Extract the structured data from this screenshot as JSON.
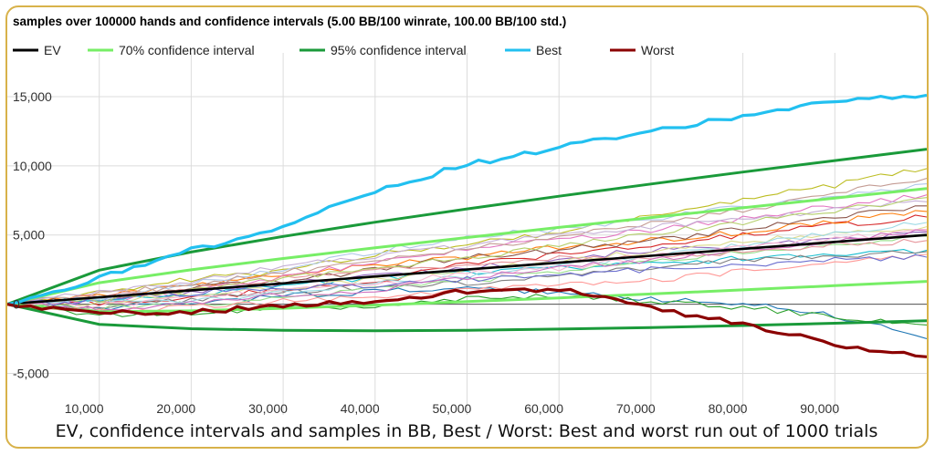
{
  "chart_data": {
    "type": "line",
    "title": "samples over 100000 hands and confidence intervals (5.00 BB/100 winrate, 100.00 BB/100 std.)",
    "caption": "EV, confidence intervals and samples in BB, Best / Worst: Best and worst run out of 1000 trials",
    "xlim": [
      0,
      100000
    ],
    "ylim": [
      -8000,
      17500
    ],
    "x_ticks": [
      10000,
      20000,
      30000,
      40000,
      50000,
      60000,
      70000,
      80000,
      90000
    ],
    "x_tick_labels": [
      "10,000",
      "20,000",
      "30,000",
      "40,000",
      "50,000",
      "60,000",
      "70,000",
      "80,000",
      "90,000"
    ],
    "y_ticks": [
      15000,
      10000,
      5000,
      0,
      -5000
    ],
    "y_tick_labels": [
      "15,000",
      "10,000",
      "5,000",
      "0",
      "-5,000"
    ],
    "grid": true,
    "legend_position": "top",
    "x": [
      0,
      10000,
      20000,
      30000,
      40000,
      50000,
      60000,
      70000,
      80000,
      90000,
      100000
    ],
    "series": [
      {
        "name": "EV",
        "color": "#000000",
        "values": [
          0,
          500,
          1000,
          1500,
          2000,
          2500,
          3000,
          3500,
          4000,
          4500,
          5000
        ]
      },
      {
        "name": "70% confidence interval",
        "color": "#77ee66",
        "band": true,
        "upper": [
          0,
          1547,
          2481,
          3300,
          4072,
          4817,
          5545,
          6261,
          6966,
          7664,
          8354
        ],
        "lower": [
          0,
          -547,
          -481,
          -300,
          -72,
          183,
          455,
          739,
          1034,
          1336,
          1646
        ]
      },
      {
        "name": "95% confidence interval",
        "color": "#1a9a3a",
        "band": true,
        "upper": [
          0,
          2460,
          3771,
          4895,
          5920,
          6883,
          7800,
          8686,
          9544,
          10380,
          11200
        ],
        "lower": [
          0,
          -1460,
          -1771,
          -1895,
          -1920,
          -1883,
          -1800,
          -1686,
          -1544,
          -1380,
          -1200
        ]
      },
      {
        "name": "Best",
        "color": "#22c0f0",
        "values": [
          0,
          1900,
          3900,
          5600,
          8200,
          10100,
          11300,
          12500,
          13600,
          14600,
          15100
        ]
      },
      {
        "name": "Worst",
        "color": "#8b0000",
        "values": [
          0,
          -700,
          -500,
          -200,
          300,
          900,
          1100,
          -300,
          -1400,
          -2900,
          -3800
        ]
      }
    ],
    "samples": [
      {
        "color": "#9467bd",
        "values": [
          0,
          300,
          900,
          1500,
          2100,
          2600,
          3300,
          3900,
          4200,
          4600,
          5200
        ]
      },
      {
        "color": "#d62728",
        "values": [
          0,
          100,
          400,
          1100,
          1600,
          2900,
          3600,
          4200,
          5000,
          5700,
          6300
        ]
      },
      {
        "color": "#bcbd22",
        "values": [
          0,
          800,
          1800,
          2400,
          3600,
          4400,
          5200,
          6400,
          7600,
          8600,
          9800
        ]
      },
      {
        "color": "#1f77b4",
        "values": [
          0,
          -400,
          100,
          600,
          900,
          1200,
          800,
          400,
          100,
          -800,
          -2500
        ]
      },
      {
        "color": "#ff7f0e",
        "values": [
          0,
          600,
          1300,
          2200,
          2800,
          3400,
          4100,
          4600,
          5200,
          6000,
          6700
        ]
      },
      {
        "color": "#e377c2",
        "values": [
          0,
          200,
          1000,
          2000,
          3000,
          3900,
          4700,
          5300,
          6200,
          7100,
          7900
        ]
      },
      {
        "color": "#2ca02c",
        "values": [
          0,
          -800,
          -600,
          -300,
          -100,
          400,
          600,
          200,
          -200,
          -900,
          -1500
        ]
      },
      {
        "color": "#8c564b",
        "values": [
          0,
          400,
          1200,
          1700,
          2500,
          3400,
          3900,
          4600,
          5400,
          6300,
          7100
        ]
      },
      {
        "color": "#17becf",
        "values": [
          0,
          300,
          600,
          1300,
          1900,
          2300,
          2600,
          2900,
          3300,
          3600,
          3900
        ]
      },
      {
        "color": "#7f7f7f",
        "values": [
          0,
          -200,
          300,
          900,
          1300,
          1500,
          2100,
          2700,
          3100,
          3500,
          3800
        ]
      },
      {
        "color": "#aec7e8",
        "values": [
          0,
          500,
          1500,
          2600,
          3800,
          4900,
          5400,
          6200,
          7000,
          7800,
          8700
        ]
      },
      {
        "color": "#98df8a",
        "values": [
          0,
          -300,
          0,
          400,
          1100,
          1700,
          2300,
          3100,
          3700,
          4300,
          4900
        ]
      },
      {
        "color": "#c49c94",
        "values": [
          0,
          700,
          1400,
          2300,
          3100,
          4000,
          4800,
          5900,
          6800,
          8000,
          9100
        ]
      },
      {
        "color": "#ff9896",
        "values": [
          0,
          -500,
          -200,
          200,
          600,
          1000,
          1500,
          1700,
          2400,
          3000,
          3600
        ]
      },
      {
        "color": "#c5b0d5",
        "values": [
          0,
          900,
          1700,
          2700,
          3500,
          4200,
          5000,
          5600,
          6100,
          6900,
          7400
        ]
      },
      {
        "color": "#dbdb8d",
        "values": [
          0,
          100,
          700,
          1200,
          1800,
          2400,
          3100,
          3800,
          4500,
          5100,
          5600
        ]
      },
      {
        "color": "#9edae5",
        "values": [
          0,
          400,
          200,
          800,
          1500,
          2000,
          2800,
          3500,
          4300,
          5100,
          5900
        ]
      },
      {
        "color": "#f7b6d2",
        "values": [
          0,
          -100,
          500,
          1000,
          1500,
          2200,
          2600,
          3400,
          4100,
          4700,
          5400
        ]
      },
      {
        "color": "#6b6ecf",
        "values": [
          0,
          200,
          800,
          1200,
          1400,
          1800,
          2100,
          2500,
          2800,
          3200,
          3400
        ]
      },
      {
        "color": "#e7969c",
        "values": [
          0,
          600,
          1100,
          1900,
          2400,
          2900,
          3300,
          3400,
          3800,
          4300,
          4600
        ]
      },
      {
        "color": "#b5cf6b",
        "values": [
          0,
          300,
          1100,
          1900,
          2600,
          3300,
          4200,
          5100,
          5900,
          6800,
          7700
        ]
      },
      {
        "color": "#ce6dbd",
        "values": [
          0,
          -300,
          100,
          700,
          1000,
          1900,
          2600,
          3200,
          3900,
          4600,
          5300
        ]
      }
    ]
  }
}
